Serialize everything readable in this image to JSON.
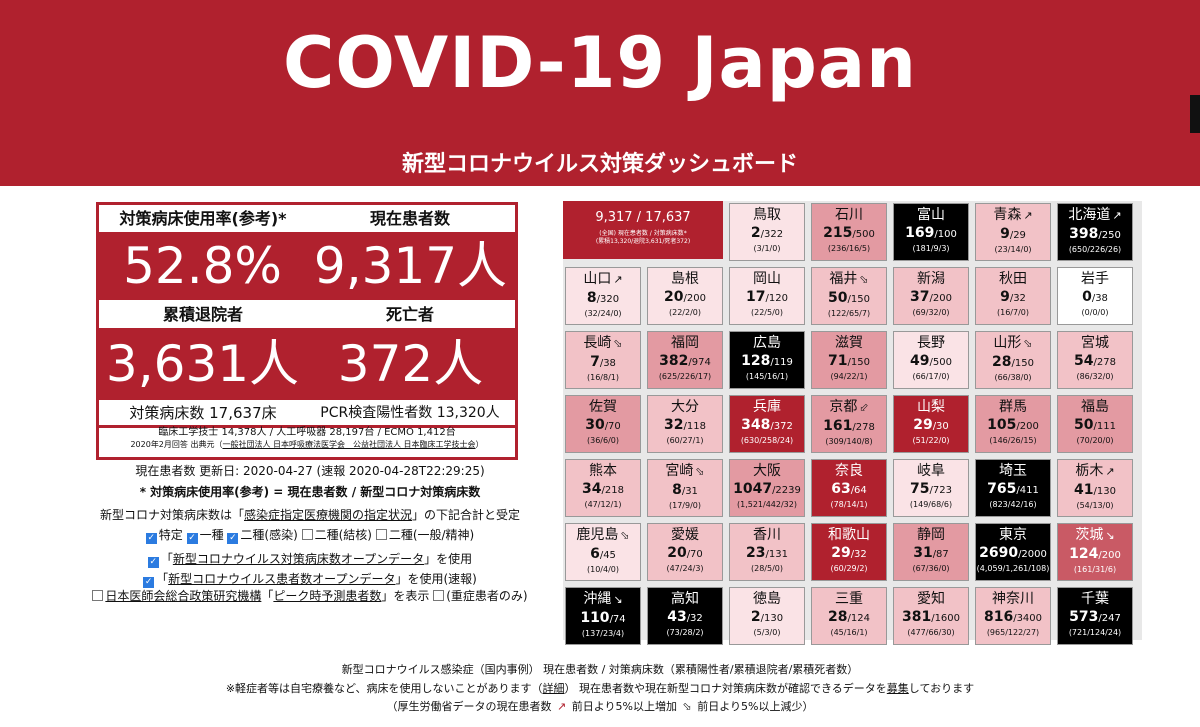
{
  "header": {
    "title": "COVID-19 Japan",
    "subtitle": "新型コロナウイルス対策ダッシュボード"
  },
  "kpi": {
    "usage_label": "対策病床使用率(参考)*",
    "usage_value": "52.8%",
    "patients_label": "現在患者数",
    "patients_value": "9,317人",
    "discharged_label": "累積退院者",
    "discharged_value": "3,631人",
    "deaths_label": "死亡者",
    "deaths_value": "372人",
    "beds_label": "対策病床数 17,637床",
    "pcr_label": "PCR検査陽性者数 13,320人"
  },
  "source": {
    "line1": "臨床工学技士 14,378人 / 人工呼吸器 28,197台 / ECMO 1,412台",
    "line2_prefix": "2020年2月回答 出典元（",
    "line2_link": "一般社団法人 日本呼吸療法医学会　公益社団法人 日本臨床工学技士会",
    "line2_suffix": "）"
  },
  "info": {
    "updated": "現在患者数 更新日: 2020-04-27 (速報 2020-04-28T22:29:25)",
    "formula": "* 対策病床使用率(参考) = 現在患者数 / 新型コロナ対策病床数",
    "beds_prefix": "新型コロナ対策病床数は「",
    "beds_link": "感染症指定医療機関の指定状況",
    "beds_suffix": "」の下記合計と受定",
    "check1": "特定",
    "check2": "一種",
    "check3": "二種(感染)",
    "check4": "二種(結核)",
    "check5": "二種(一般/精神)",
    "opt1_prefix": "「",
    "opt1_link": "新型コロナウイルス対策病床数オープンデータ",
    "opt1_suffix": "」を使用",
    "opt2_prefix": "「",
    "opt2_link": "新型コロナウイルス患者数オープンデータ",
    "opt2_suffix": "」を使用(速報)",
    "opt3_link1": "日本医師会総合政策研究機構",
    "opt3_mid": "「",
    "opt3_link2": "ピーク時予測患者数",
    "opt3_suffix": "」を表示",
    "opt4": "(重症患者のみ)"
  },
  "total_tile": {
    "name": "9,317 / 17,637",
    "line1": "(全国) 現在患者数 / 対策病床数*",
    "line2": "(累積13,320/退院3,631/死者372)"
  },
  "prefectures": [
    {
      "name": "鳥取",
      "cur": "2",
      "beds": "/322",
      "sub": "(3/1/0)",
      "arrow": ""
    },
    {
      "name": "石川",
      "cur": "215",
      "beds": "/500",
      "sub": "(236/16/5)",
      "arrow": ""
    },
    {
      "name": "富山",
      "cur": "169",
      "beds": "/100",
      "sub": "(181/9/3)",
      "arrow": ""
    },
    {
      "name": "青森",
      "cur": "9",
      "beds": "/29",
      "sub": "(23/14/0)",
      "arrow": "↗"
    },
    {
      "name": "北海道",
      "cur": "398",
      "beds": "/250",
      "sub": "(650/226/26)",
      "arrow": "↗"
    },
    {
      "name": "山口",
      "cur": "8",
      "beds": "/320",
      "sub": "(32/24/0)",
      "arrow": "↗"
    },
    {
      "name": "島根",
      "cur": "20",
      "beds": "/200",
      "sub": "(22/2/0)",
      "arrow": ""
    },
    {
      "name": "岡山",
      "cur": "17",
      "beds": "/120",
      "sub": "(22/5/0)",
      "arrow": ""
    },
    {
      "name": "福井",
      "cur": "50",
      "beds": "/150",
      "sub": "(122/65/7)",
      "arrow": "⬂"
    },
    {
      "name": "新潟",
      "cur": "37",
      "beds": "/200",
      "sub": "(69/32/0)",
      "arrow": ""
    },
    {
      "name": "秋田",
      "cur": "9",
      "beds": "/32",
      "sub": "(16/7/0)",
      "arrow": ""
    },
    {
      "name": "岩手",
      "cur": "0",
      "beds": "/38",
      "sub": "(0/0/0)",
      "arrow": ""
    },
    {
      "name": "長崎",
      "cur": "7",
      "beds": "/38",
      "sub": "(16/8/1)",
      "arrow": "⬂"
    },
    {
      "name": "福岡",
      "cur": "382",
      "beds": "/974",
      "sub": "(625/226/17)",
      "arrow": ""
    },
    {
      "name": "広島",
      "cur": "128",
      "beds": "/119",
      "sub": "(145/16/1)",
      "arrow": ""
    },
    {
      "name": "滋賀",
      "cur": "71",
      "beds": "/150",
      "sub": "(94/22/1)",
      "arrow": ""
    },
    {
      "name": "長野",
      "cur": "49",
      "beds": "/500",
      "sub": "(66/17/0)",
      "arrow": ""
    },
    {
      "name": "山形",
      "cur": "28",
      "beds": "/150",
      "sub": "(66/38/0)",
      "arrow": "⬂"
    },
    {
      "name": "宮城",
      "cur": "54",
      "beds": "/278",
      "sub": "(86/32/0)",
      "arrow": ""
    },
    {
      "name": "佐賀",
      "cur": "30",
      "beds": "/70",
      "sub": "(36/6/0)",
      "arrow": ""
    },
    {
      "name": "大分",
      "cur": "32",
      "beds": "/118",
      "sub": "(60/27/1)",
      "arrow": ""
    },
    {
      "name": "兵庫",
      "cur": "348",
      "beds": "/372",
      "sub": "(630/258/24)",
      "arrow": ""
    },
    {
      "name": "京都",
      "cur": "161",
      "beds": "/278",
      "sub": "(309/140/8)",
      "arrow": "⬃"
    },
    {
      "name": "山梨",
      "cur": "29",
      "beds": "/30",
      "sub": "(51/22/0)",
      "arrow": ""
    },
    {
      "name": "群馬",
      "cur": "105",
      "beds": "/200",
      "sub": "(146/26/15)",
      "arrow": ""
    },
    {
      "name": "福島",
      "cur": "50",
      "beds": "/111",
      "sub": "(70/20/0)",
      "arrow": ""
    },
    {
      "name": "熊本",
      "cur": "34",
      "beds": "/218",
      "sub": "(47/12/1)",
      "arrow": ""
    },
    {
      "name": "宮崎",
      "cur": "8",
      "beds": "/31",
      "sub": "(17/9/0)",
      "arrow": "⬂"
    },
    {
      "name": "大阪",
      "cur": "1047",
      "beds": "/2239",
      "sub": "(1,521/442/32)",
      "arrow": ""
    },
    {
      "name": "奈良",
      "cur": "63",
      "beds": "/64",
      "sub": "(78/14/1)",
      "arrow": ""
    },
    {
      "name": "岐阜",
      "cur": "75",
      "beds": "/723",
      "sub": "(149/68/6)",
      "arrow": ""
    },
    {
      "name": "埼玉",
      "cur": "765",
      "beds": "/411",
      "sub": "(823/42/16)",
      "arrow": ""
    },
    {
      "name": "栃木",
      "cur": "41",
      "beds": "/130",
      "sub": "(54/13/0)",
      "arrow": "↗"
    },
    {
      "name": "鹿児島",
      "cur": "6",
      "beds": "/45",
      "sub": "(10/4/0)",
      "arrow": "⬂"
    },
    {
      "name": "愛媛",
      "cur": "20",
      "beds": "/70",
      "sub": "(47/24/3)",
      "arrow": ""
    },
    {
      "name": "香川",
      "cur": "23",
      "beds": "/131",
      "sub": "(28/5/0)",
      "arrow": ""
    },
    {
      "name": "和歌山",
      "cur": "29",
      "beds": "/32",
      "sub": "(60/29/2)",
      "arrow": ""
    },
    {
      "name": "静岡",
      "cur": "31",
      "beds": "/87",
      "sub": "(67/36/0)",
      "arrow": ""
    },
    {
      "name": "東京",
      "cur": "2690",
      "beds": "/2000",
      "sub": "(4,059/1,261/108)",
      "arrow": ""
    },
    {
      "name": "茨城",
      "cur": "124",
      "beds": "/200",
      "sub": "(161/31/6)",
      "arrow": "↘"
    },
    {
      "name": "沖縄",
      "cur": "110",
      "beds": "/74",
      "sub": "(137/23/4)",
      "arrow": "↘"
    },
    {
      "name": "高知",
      "cur": "43",
      "beds": "/32",
      "sub": "(73/28/2)",
      "arrow": ""
    },
    {
      "name": "徳島",
      "cur": "2",
      "beds": "/130",
      "sub": "(5/3/0)",
      "arrow": ""
    },
    {
      "name": "三重",
      "cur": "28",
      "beds": "/124",
      "sub": "(45/16/1)",
      "arrow": ""
    },
    {
      "name": "愛知",
      "cur": "381",
      "beds": "/1600",
      "sub": "(477/66/30)",
      "arrow": ""
    },
    {
      "name": "神奈川",
      "cur": "816",
      "beds": "/3400",
      "sub": "(965/122/27)",
      "arrow": ""
    },
    {
      "name": "千葉",
      "cur": "573",
      "beds": "/247",
      "sub": "(721/124/24)",
      "arrow": ""
    }
  ],
  "footer": {
    "line1": "新型コロナウイルス感染症（国内事例） 現在患者数 / 対策病床数（累積陽性者/累積退院者/累積死者数）",
    "line2_a": "※軽症者等は自宅療養など、病床を使用しないことがあります（",
    "line2_link1": "詳細",
    "line2_b": "） 現在患者数や現在新型コロナ対策病床数が確認できるデータを",
    "line2_link2": "募集",
    "line2_c": "しております",
    "line3_a": "（厚生労働省データの現在患者数 ",
    "line3_up": "↗",
    "line3_b": " 前日より5%以上増加 ",
    "line3_down": "⬂",
    "line3_c": " 前日より5%以上減少）"
  }
}
